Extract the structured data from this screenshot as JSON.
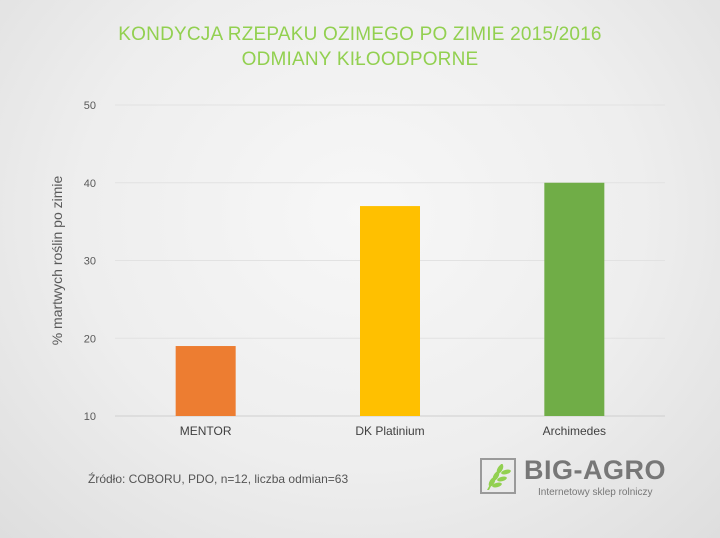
{
  "chart_data": {
    "type": "bar",
    "title": "KONDYCJA RZEPAKU OZIMEGO PO ZIMIE 2015/2016",
    "subtitle": "ODMIANY KIŁOODPORNE",
    "xlabel": "",
    "ylabel": "% martwych roślin po zimie",
    "categories": [
      "MENTOR",
      "DK Platinium",
      "Archimedes"
    ],
    "values": [
      19,
      37,
      40
    ],
    "colors": [
      "#ed7d31",
      "#ffc000",
      "#70ad47"
    ],
    "ylim": [
      10,
      50
    ],
    "yticks": [
      10,
      20,
      30,
      40,
      50
    ],
    "grid": true,
    "legend": "none"
  },
  "source": "Źródło: COBORU, PDO, n=12, liczba odmian=63",
  "logo": {
    "name": "BIG-AGRO",
    "tagline": "Internetowy sklep rolniczy",
    "colors": {
      "wheat": "#92d050",
      "text": "#777777"
    }
  }
}
